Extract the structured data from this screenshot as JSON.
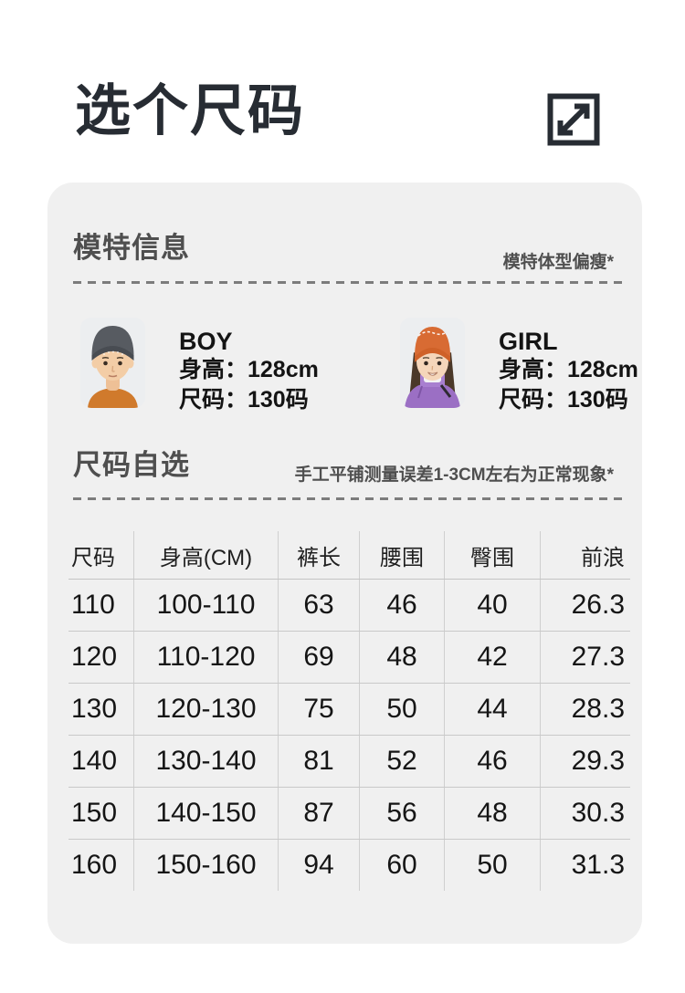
{
  "page": {
    "title": "选个尺码"
  },
  "icons": {
    "header_action": "expand-icon"
  },
  "colors": {
    "page_bg": "#ffffff",
    "card_bg": "#f0f0f0",
    "title_text": "#272c33",
    "section_heading": "#4f4f4f",
    "note_text": "#4f4f4f",
    "divider_dash": "#7c7c7c",
    "table_text": "#151515",
    "table_line": "#cccccc",
    "boy_shirt": "#d07a2c",
    "boy_beanie": "#575b61",
    "girl_beanie": "#d86b33",
    "girl_jacket": "#9b6fc4"
  },
  "model_info": {
    "heading": "模特信息",
    "note": "模特体型偏瘦*",
    "models": [
      {
        "label": "BOY",
        "height": "身高：128cm",
        "size": "尺码：130码"
      },
      {
        "label": "GIRL",
        "height": "身高：128cm",
        "size": "尺码：130码"
      }
    ]
  },
  "size_section": {
    "heading": "尺码自选",
    "note": "手工平铺测量误差1-3CM左右为正常现象*"
  },
  "size_table": {
    "columns": [
      "尺码",
      "身高(CM)",
      "裤长",
      "腰围",
      "臀围",
      "前浪"
    ],
    "rows": [
      [
        "110",
        "100-110",
        "63",
        "46",
        "40",
        "26.3"
      ],
      [
        "120",
        "110-120",
        "69",
        "48",
        "42",
        "27.3"
      ],
      [
        "130",
        "120-130",
        "75",
        "50",
        "44",
        "28.3"
      ],
      [
        "140",
        "130-140",
        "81",
        "52",
        "46",
        "29.3"
      ],
      [
        "150",
        "140-150",
        "87",
        "56",
        "48",
        "30.3"
      ],
      [
        "160",
        "150-160",
        "94",
        "60",
        "50",
        "31.3"
      ]
    ]
  }
}
